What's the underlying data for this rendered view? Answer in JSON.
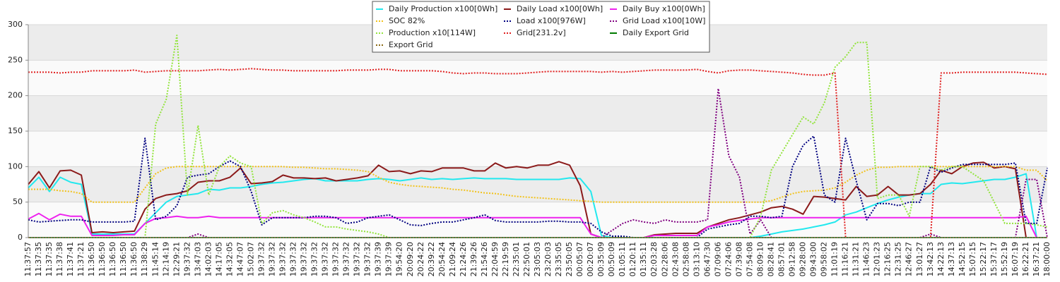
{
  "chart_data": {
    "type": "line",
    "ylim": [
      0,
      300
    ],
    "yticks": [
      0,
      50,
      100,
      150,
      200,
      250,
      300
    ],
    "grid": true,
    "legend": "top",
    "categories": [
      "11:37:57",
      "11:37:35",
      "11:37:35",
      "11:37:38",
      "11:37:41",
      "11:37:21",
      "11:36:50",
      "11:36:50",
      "11:36:50",
      "11:36:50",
      "11:36:50",
      "11:38:29",
      "11:45:14",
      "12:14:19",
      "12:29:21",
      "19:37:32",
      "13:47:03",
      "14:02:03",
      "14:17:05",
      "14:32:05",
      "14:47:07",
      "15:02:07",
      "19:37:32",
      "19:37:32",
      "19:37:32",
      "19:37:32",
      "19:37:32",
      "19:37:32",
      "19:37:32",
      "19:37:32",
      "19:37:32",
      "19:37:32",
      "19:37:32",
      "19:37:39",
      "19:37:39",
      "19:54:20",
      "20:09:20",
      "20:24:22",
      "20:39:22",
      "20:54:24",
      "21:09:24",
      "21:24:26",
      "21:39:26",
      "21:54:26",
      "22:04:59",
      "22:19:59",
      "22:35:01",
      "22:50:01",
      "23:05:03",
      "23:20:03",
      "23:35:05",
      "23:50:05",
      "00:05:07",
      "00:20:07",
      "00:35:09",
      "00:50:09",
      "01:05:11",
      "01:20:11",
      "01:35:11",
      "02:03:28",
      "02:28:06",
      "02:43:08",
      "02:58:08",
      "03:13:10",
      "06:47:30",
      "07:09:06",
      "07:24:06",
      "07:39:08",
      "07:54:08",
      "08:09:10",
      "08:28:41",
      "08:57:01",
      "09:12:58",
      "09:28:00",
      "09:43:00",
      "09:58:02",
      "11:01:19",
      "11:16:21",
      "11:31:21",
      "11:46:23",
      "12:01:23",
      "12:16:25",
      "12:31:25",
      "12:46:27",
      "13:01:27",
      "13:42:13",
      "14:22:13",
      "14:37:13",
      "14:52:15",
      "15:07:15",
      "15:22:17",
      "15:37:17",
      "15:52:19",
      "16:07:19",
      "16:22:21",
      "16:37:21",
      "18:00:00"
    ],
    "series": [
      {
        "name": "Daily Production x100[0Wh]",
        "color": "#22e8ee",
        "style": "solid",
        "values": [
          70,
          85,
          65,
          85,
          78,
          75,
          5,
          5,
          5,
          5,
          5,
          20,
          35,
          50,
          58,
          60,
          62,
          68,
          67,
          70,
          70,
          72,
          75,
          77,
          78,
          80,
          82,
          83,
          80,
          80,
          80,
          80,
          82,
          83,
          82,
          80,
          82,
          84,
          82,
          83,
          82,
          83,
          84,
          83,
          83,
          83,
          82,
          82,
          82,
          82,
          82,
          84,
          83,
          65,
          3,
          0,
          0,
          0,
          0,
          0,
          0,
          0,
          0,
          0,
          0,
          0,
          0,
          0,
          0,
          2,
          5,
          8,
          10,
          12,
          15,
          18,
          22,
          32,
          36,
          42,
          48,
          53,
          57,
          60,
          62,
          62,
          75,
          77,
          76,
          78,
          80,
          82,
          82,
          85,
          90,
          0,
          0
        ]
      },
      {
        "name": "Daily Load x100[0Wh]",
        "color": "#8b1a1a",
        "style": "solid",
        "values": [
          75,
          93,
          70,
          94,
          95,
          88,
          7,
          8,
          7,
          8,
          9,
          40,
          55,
          60,
          62,
          66,
          78,
          80,
          80,
          85,
          98,
          76,
          77,
          79,
          88,
          84,
          84,
          83,
          84,
          80,
          82,
          84,
          87,
          102,
          93,
          94,
          90,
          94,
          93,
          98,
          98,
          98,
          94,
          94,
          105,
          98,
          100,
          98,
          102,
          102,
          107,
          102,
          73,
          5,
          0,
          0,
          0,
          0,
          0,
          4,
          5,
          6,
          6,
          6,
          15,
          20,
          25,
          28,
          32,
          36,
          42,
          44,
          40,
          33,
          58,
          57,
          55,
          53,
          72,
          58,
          60,
          72,
          60,
          60,
          62,
          75,
          95,
          90,
          100,
          105,
          106,
          98,
          100,
          97,
          0,
          0,
          0
        ]
      },
      {
        "name": "Daily Buy x100[0Wh]",
        "color": "#ee22ee",
        "style": "solid",
        "values": [
          26,
          34,
          25,
          33,
          30,
          30,
          3,
          3,
          3,
          4,
          4,
          20,
          27,
          28,
          30,
          28,
          28,
          30,
          28,
          28,
          28,
          28,
          28,
          28,
          28,
          28,
          28,
          28,
          28,
          28,
          28,
          28,
          28,
          28,
          28,
          28,
          28,
          28,
          28,
          28,
          28,
          28,
          28,
          28,
          28,
          28,
          28,
          28,
          28,
          28,
          28,
          28,
          28,
          5,
          0,
          0,
          0,
          0,
          0,
          3,
          3,
          3,
          3,
          3,
          15,
          18,
          22,
          24,
          26,
          28,
          28,
          28,
          28,
          28,
          28,
          28,
          28,
          28,
          28,
          28,
          28,
          28,
          28,
          28,
          28,
          28,
          28,
          28,
          28,
          28,
          28,
          28,
          28,
          28,
          30,
          0,
          0
        ]
      },
      {
        "name": "SOC 82%",
        "color": "#f2c21a",
        "style": "dotted",
        "values": [
          68,
          68,
          68,
          66,
          65,
          62,
          50,
          50,
          50,
          50,
          50,
          70,
          90,
          98,
          100,
          100,
          100,
          100,
          100,
          100,
          100,
          100,
          100,
          100,
          100,
          99,
          99,
          98,
          97,
          97,
          96,
          95,
          93,
          85,
          78,
          75,
          73,
          72,
          71,
          70,
          68,
          67,
          65,
          63,
          62,
          60,
          58,
          57,
          56,
          55,
          54,
          53,
          52,
          51,
          50,
          50,
          50,
          50,
          50,
          50,
          50,
          50,
          50,
          50,
          50,
          50,
          50,
          50,
          50,
          50,
          52,
          57,
          62,
          65,
          66,
          67,
          70,
          78,
          88,
          95,
          99,
          99,
          100,
          100,
          100,
          100,
          100,
          100,
          100,
          100,
          100,
          100,
          100,
          100,
          95,
          95,
          80
        ]
      },
      {
        "name": "Load x100[976W]",
        "color": "#000080",
        "style": "dotted",
        "values": [
          25,
          22,
          23,
          24,
          25,
          25,
          22,
          22,
          22,
          22,
          23,
          140,
          25,
          30,
          45,
          85,
          88,
          90,
          100,
          108,
          100,
          65,
          18,
          28,
          28,
          28,
          28,
          30,
          30,
          28,
          20,
          22,
          28,
          30,
          32,
          25,
          18,
          17,
          20,
          22,
          22,
          25,
          28,
          32,
          24,
          22,
          22,
          22,
          22,
          23,
          23,
          22,
          22,
          20,
          8,
          2,
          2,
          0,
          0,
          0,
          0,
          0,
          0,
          0,
          12,
          15,
          18,
          20,
          30,
          30,
          28,
          30,
          100,
          130,
          143,
          60,
          50,
          140,
          80,
          25,
          48,
          48,
          45,
          50,
          50,
          100,
          92,
          98,
          103,
          103,
          103,
          103,
          103,
          105,
          20,
          20,
          98
        ]
      },
      {
        "name": "Grid Load x100[10W]",
        "color": "#800080",
        "style": "dotted",
        "values": [
          0,
          0,
          0,
          0,
          0,
          0,
          0,
          0,
          0,
          0,
          0,
          0,
          0,
          0,
          0,
          0,
          5,
          0,
          0,
          0,
          0,
          0,
          0,
          0,
          0,
          0,
          0,
          0,
          0,
          0,
          0,
          0,
          0,
          0,
          0,
          0,
          0,
          0,
          0,
          0,
          0,
          0,
          0,
          0,
          0,
          0,
          0,
          0,
          0,
          0,
          0,
          0,
          0,
          0,
          0,
          10,
          20,
          25,
          22,
          20,
          25,
          22,
          22,
          22,
          25,
          210,
          115,
          85,
          5,
          25,
          0,
          0,
          0,
          0,
          0,
          0,
          0,
          0,
          0,
          0,
          0,
          0,
          0,
          0,
          0,
          5,
          0,
          0,
          0,
          0,
          0,
          0,
          0,
          0,
          82,
          82,
          0
        ]
      },
      {
        "name": "Production x10[114W]",
        "color": "#92e43c",
        "style": "dotted",
        "values": [
          0,
          0,
          0,
          0,
          0,
          0,
          0,
          0,
          0,
          0,
          0,
          0,
          160,
          195,
          285,
          60,
          158,
          60,
          100,
          115,
          105,
          100,
          20,
          35,
          38,
          32,
          28,
          22,
          15,
          15,
          12,
          10,
          8,
          5,
          0,
          0,
          0,
          0,
          0,
          0,
          0,
          0,
          0,
          0,
          0,
          0,
          0,
          0,
          0,
          0,
          0,
          0,
          0,
          0,
          0,
          0,
          0,
          0,
          0,
          0,
          0,
          0,
          0,
          0,
          0,
          0,
          0,
          0,
          0,
          30,
          95,
          120,
          145,
          170,
          160,
          190,
          240,
          255,
          275,
          275,
          55,
          60,
          60,
          30,
          100,
          100,
          95,
          100,
          100,
          90,
          80,
          50,
          20,
          20,
          20,
          18,
          15
        ]
      },
      {
        "name": "Grid[231.2v]",
        "color": "#e02020",
        "style": "dotted",
        "values": [
          233,
          233,
          233,
          232,
          233,
          233,
          235,
          235,
          235,
          235,
          236,
          233,
          234,
          235,
          235,
          235,
          235,
          236,
          237,
          236,
          237,
          238,
          237,
          236,
          236,
          235,
          235,
          235,
          235,
          235,
          236,
          236,
          236,
          237,
          237,
          235,
          235,
          235,
          235,
          234,
          232,
          231,
          232,
          232,
          231,
          231,
          231,
          232,
          233,
          234,
          234,
          234,
          234,
          234,
          233,
          234,
          233,
          234,
          235,
          236,
          236,
          236,
          236,
          237,
          234,
          232,
          235,
          236,
          236,
          235,
          234,
          233,
          232,
          230,
          229,
          229,
          232,
          0,
          0,
          0,
          0,
          0,
          0,
          0,
          0,
          0,
          232,
          232,
          233,
          233,
          233,
          233,
          233,
          233,
          232,
          231,
          230
        ]
      },
      {
        "name": "Daily Export Grid",
        "color": "#007a00",
        "style": "solid",
        "values": [
          0,
          0,
          0,
          0,
          0,
          0,
          0,
          0,
          0,
          0,
          0,
          0,
          0,
          0,
          0,
          0,
          0,
          0,
          0,
          0,
          0,
          0,
          0,
          0,
          0,
          0,
          0,
          0,
          0,
          0,
          0,
          0,
          0,
          0,
          0,
          0,
          0,
          0,
          0,
          0,
          0,
          0,
          0,
          0,
          0,
          0,
          0,
          0,
          0,
          0,
          0,
          0,
          0,
          0,
          0,
          0,
          0,
          0,
          0,
          0,
          0,
          0,
          0,
          0,
          0,
          0,
          0,
          0,
          0,
          0,
          0,
          0,
          0,
          0,
          0,
          0,
          0,
          0,
          0,
          0,
          0,
          0,
          0,
          0,
          0,
          0,
          0,
          0,
          0,
          0,
          0,
          0,
          0,
          0,
          0,
          0,
          0
        ]
      },
      {
        "name": "Export Grid",
        "color": "#8b6914",
        "style": "dotted",
        "values": [
          0,
          0,
          0,
          0,
          0,
          0,
          0,
          0,
          0,
          0,
          0,
          0,
          0,
          0,
          0,
          0,
          0,
          0,
          0,
          0,
          0,
          0,
          0,
          0,
          0,
          0,
          0,
          0,
          0,
          0,
          0,
          0,
          0,
          0,
          0,
          0,
          0,
          0,
          0,
          0,
          0,
          0,
          0,
          0,
          0,
          0,
          0,
          0,
          0,
          0,
          0,
          0,
          0,
          0,
          0,
          0,
          0,
          0,
          0,
          0,
          0,
          0,
          0,
          0,
          0,
          0,
          0,
          0,
          0,
          0,
          0,
          0,
          0,
          0,
          0,
          0,
          0,
          0,
          0,
          0,
          0,
          0,
          0,
          0,
          0,
          0,
          0,
          0,
          0,
          0,
          0,
          0,
          0,
          0,
          0,
          0,
          0
        ]
      }
    ]
  }
}
